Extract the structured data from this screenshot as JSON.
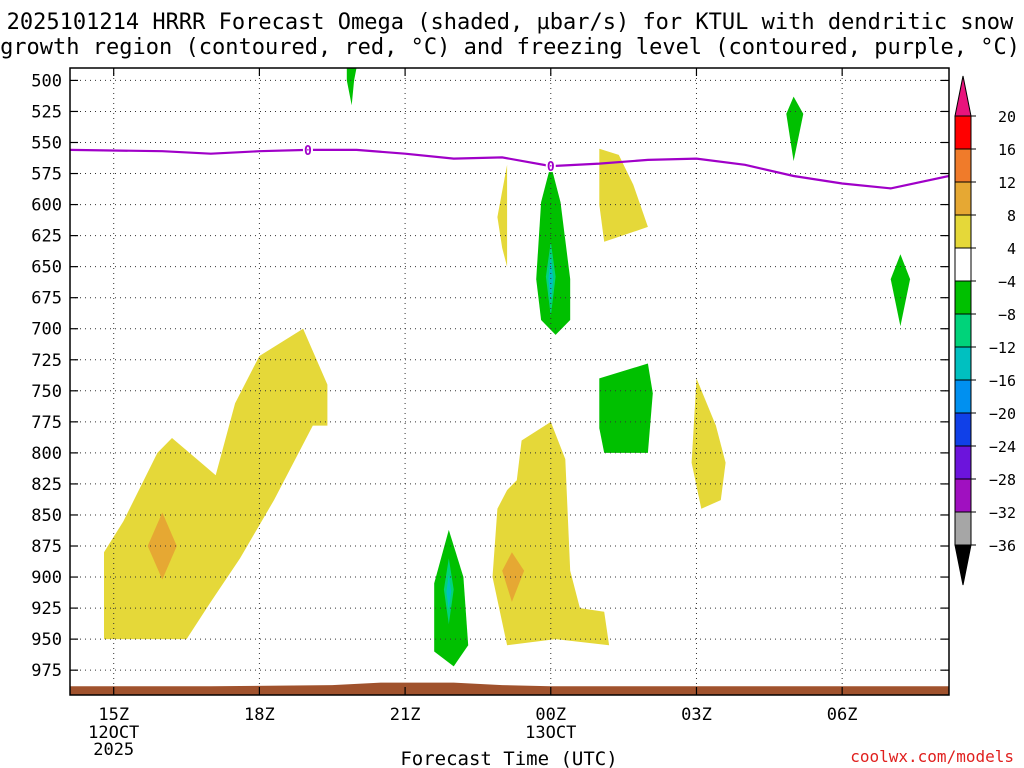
{
  "chart_data": {
    "type": "time-height contour",
    "title_lines": [
      "2025101214 HRRR Forecast Omega (shaded, µbar/s) for KTUL with dendritic snow",
      "growth region (contoured, red, °C) and freezing level (contoured, purple, °C)"
    ],
    "xlabel": "Forecast Time (UTC)",
    "credit": "coolwx.com/models",
    "pressure_ticks": [
      500,
      525,
      550,
      575,
      600,
      625,
      650,
      675,
      700,
      725,
      750,
      775,
      800,
      825,
      850,
      875,
      900,
      925,
      950,
      975
    ],
    "y_range": [
      490,
      995
    ],
    "x_range_hours": [
      14.1,
      32.2
    ],
    "x_ticks": [
      {
        "hour": 15,
        "label": "15Z",
        "date": [
          "12OCT",
          "2025"
        ]
      },
      {
        "hour": 18,
        "label": "18Z",
        "date": []
      },
      {
        "hour": 21,
        "label": "21Z",
        "date": []
      },
      {
        "hour": 24,
        "label": "00Z",
        "date": [
          "13OCT"
        ]
      },
      {
        "hour": 27,
        "label": "03Z",
        "date": []
      },
      {
        "hour": 30,
        "label": "06Z",
        "date": []
      }
    ],
    "colorbar": {
      "labels": [
        "20",
        "16",
        "12",
        "8",
        "4",
        "−4",
        "−8",
        "−12",
        "−16",
        "−20",
        "−24",
        "−28",
        "−32",
        "−36"
      ],
      "colors": [
        "#ff0000",
        "#f07b2a",
        "#e6a833",
        "#e5d839",
        "#ffffff",
        "#00c000",
        "#00d37a",
        "#00c0c0",
        "#0090f0",
        "#1040e8",
        "#6c14dc",
        "#a010c0",
        "#a6a6a6"
      ],
      "top_color": "#e8147c",
      "bottom_color": "#000000"
    },
    "freezing_level": {
      "label": "0",
      "color": "#a000c8",
      "points": [
        [
          14.1,
          556
        ],
        [
          16,
          557
        ],
        [
          17,
          559
        ],
        [
          18,
          557
        ],
        [
          19,
          556
        ],
        [
          20,
          556
        ],
        [
          21,
          559
        ],
        [
          22,
          563
        ],
        [
          23,
          562
        ],
        [
          24,
          569
        ],
        [
          25,
          567
        ],
        [
          26,
          564
        ],
        [
          27,
          563
        ],
        [
          28,
          568
        ],
        [
          29,
          577
        ],
        [
          30,
          583
        ],
        [
          31,
          587
        ],
        [
          32.2,
          577
        ]
      ],
      "label_hours": [
        19,
        24
      ]
    },
    "terrain": {
      "color": "#a0522d",
      "points": [
        [
          14.1,
          988
        ],
        [
          17,
          988
        ],
        [
          19.5,
          987
        ],
        [
          20.5,
          985
        ],
        [
          22,
          985
        ],
        [
          23,
          987
        ],
        [
          24,
          988
        ],
        [
          32.2,
          988
        ]
      ]
    },
    "omega_regions": [
      {
        "value_class": "4 to 8",
        "color": "#e5d839",
        "points": [
          [
            14.8,
            950
          ],
          [
            14.8,
            880
          ],
          [
            15.2,
            855
          ],
          [
            15.9,
            800
          ],
          [
            16.2,
            788
          ],
          [
            16.8,
            808
          ],
          [
            17.1,
            818
          ],
          [
            17.5,
            760
          ],
          [
            18.0,
            722
          ],
          [
            18.9,
            700
          ],
          [
            19.4,
            745
          ],
          [
            19.4,
            778
          ],
          [
            19.1,
            778
          ],
          [
            18.3,
            838
          ],
          [
            17.6,
            885
          ],
          [
            17.0,
            920
          ],
          [
            16.5,
            950
          ]
        ]
      },
      {
        "value_class": "8 to 12",
        "color": "#e6a833",
        "points": [
          [
            15.7,
            875
          ],
          [
            16.0,
            848
          ],
          [
            16.3,
            875
          ],
          [
            16.0,
            902
          ]
        ]
      },
      {
        "value_class": "4 to 8",
        "color": "#e5d839",
        "points": [
          [
            23.1,
            955
          ],
          [
            22.8,
            900
          ],
          [
            22.9,
            845
          ],
          [
            23.1,
            830
          ],
          [
            23.3,
            822
          ],
          [
            23.4,
            790
          ],
          [
            24.0,
            775
          ],
          [
            24.3,
            805
          ],
          [
            24.4,
            895
          ],
          [
            24.6,
            925
          ],
          [
            25.1,
            928
          ],
          [
            25.2,
            955
          ],
          [
            24.1,
            950
          ]
        ]
      },
      {
        "value_class": "8 to 12",
        "color": "#e6a833",
        "points": [
          [
            23.0,
            895
          ],
          [
            23.2,
            880
          ],
          [
            23.45,
            895
          ],
          [
            23.2,
            920
          ]
        ]
      },
      {
        "value_class": "4 to 8",
        "color": "#e5d839",
        "points": [
          [
            23.0,
            635
          ],
          [
            22.9,
            610
          ],
          [
            23.1,
            568
          ],
          [
            23.1,
            650
          ]
        ]
      },
      {
        "value_class": "4 to 8",
        "color": "#e5d839",
        "points": [
          [
            25.0,
            555
          ],
          [
            25.4,
            560
          ],
          [
            25.7,
            584
          ],
          [
            26.0,
            618
          ],
          [
            25.7,
            622
          ],
          [
            25.1,
            630
          ],
          [
            25.0,
            600
          ]
        ]
      },
      {
        "value_class": "4 to 8",
        "color": "#e5d839",
        "points": [
          [
            27.0,
            740
          ],
          [
            27.4,
            778
          ],
          [
            27.6,
            808
          ],
          [
            27.5,
            838
          ],
          [
            27.1,
            845
          ],
          [
            26.9,
            808
          ]
        ]
      },
      {
        "value_class": "-4 to -8",
        "color": "#00c000",
        "points": [
          [
            24.0,
            568
          ],
          [
            24.2,
            598
          ],
          [
            24.4,
            660
          ],
          [
            24.4,
            693
          ],
          [
            24.1,
            705
          ],
          [
            23.8,
            693
          ],
          [
            23.7,
            660
          ],
          [
            23.8,
            598
          ]
        ]
      },
      {
        "value_class": "-8 to -12",
        "color": "#00d37a",
        "points": [
          [
            24.0,
            630
          ],
          [
            24.1,
            658
          ],
          [
            24.0,
            690
          ],
          [
            23.9,
            658
          ]
        ]
      },
      {
        "value_class": "-12 to -16",
        "color": "#00c0c0",
        "points": [
          [
            24.0,
            640
          ],
          [
            24.05,
            660
          ],
          [
            24.0,
            680
          ],
          [
            23.95,
            660
          ]
        ]
      },
      {
        "value_class": "-4 to -8",
        "color": "#00c000",
        "points": [
          [
            21.6,
            905
          ],
          [
            21.9,
            862
          ],
          [
            22.2,
            900
          ],
          [
            22.3,
            955
          ],
          [
            22.0,
            972
          ],
          [
            21.6,
            960
          ]
        ]
      },
      {
        "value_class": "-8 to -12",
        "color": "#00d37a",
        "points": [
          [
            21.9,
            885
          ],
          [
            22.0,
            910
          ],
          [
            21.9,
            938
          ],
          [
            21.8,
            910
          ]
        ]
      },
      {
        "value_class": "-12 to -16",
        "color": "#00c0c0",
        "points": [
          [
            21.9,
            898
          ],
          [
            21.95,
            912
          ],
          [
            21.9,
            926
          ],
          [
            21.85,
            912
          ]
        ]
      },
      {
        "value_class": "-4 to -8",
        "color": "#00c000",
        "points": [
          [
            25.0,
            750
          ],
          [
            25.0,
            740
          ],
          [
            26.0,
            728
          ],
          [
            26.1,
            752
          ],
          [
            26.0,
            800
          ],
          [
            25.1,
            800
          ],
          [
            25.0,
            780
          ]
        ]
      },
      {
        "value_class": "-4 to -8",
        "color": "#00c000",
        "points": [
          [
            19.8,
            490
          ],
          [
            20.0,
            490
          ],
          [
            19.95,
            500
          ],
          [
            19.9,
            520
          ],
          [
            19.8,
            500
          ]
        ]
      },
      {
        "value_class": "-4 to -8",
        "color": "#00c000",
        "points": [
          [
            29.0,
            513
          ],
          [
            29.2,
            527
          ],
          [
            29.0,
            565
          ],
          [
            28.85,
            527
          ]
        ]
      },
      {
        "value_class": "-4 to -8",
        "color": "#00c000",
        "points": [
          [
            31.2,
            640
          ],
          [
            31.4,
            660
          ],
          [
            31.2,
            698
          ],
          [
            31.0,
            660
          ]
        ]
      }
    ]
  }
}
